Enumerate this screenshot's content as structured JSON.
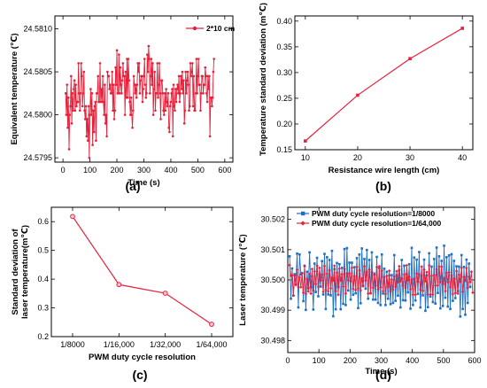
{
  "chart_data": [
    {
      "panel": "(a)",
      "type": "line",
      "xlabel": "Time (s)",
      "ylabel": "Equivalent temperature (℃)",
      "xlim": [
        -30,
        630
      ],
      "ylim": [
        24.57945,
        24.58115
      ],
      "xticks": [
        0,
        100,
        200,
        300,
        400,
        500,
        600
      ],
      "yticks": [
        24.5795,
        24.58,
        24.5805,
        24.581
      ],
      "ytick_labels": [
        "24.5795",
        "24.5800",
        "24.5805",
        "24.5810"
      ],
      "legend_position": "top-right",
      "color": "#e8203a",
      "series": [
        {
          "name": "2*10 cm",
          "x_start": 10,
          "x_step": 2.5,
          "y": [
            24.58025,
            24.58,
            24.58035,
            24.57985,
            24.5802,
            24.5796,
            24.58,
            24.5801,
            24.58045,
            24.5799,
            24.58025,
            24.58005,
            24.5803,
            24.5804,
            24.58005,
            24.58035,
            24.5801,
            24.58015,
            24.58015,
            24.5806,
            24.58025,
            24.58005,
            24.58025,
            24.5806,
            24.58045,
            24.5801,
            24.58025,
            24.5805,
            24.58005,
            24.57995,
            24.5801,
            24.57975,
            24.57995,
            24.5797,
            24.5801,
            24.5795,
            24.58,
            24.5803,
            24.58,
            24.58025,
            24.57965,
            24.58005,
            24.5798,
            24.5801,
            24.58015,
            24.5797,
            24.58025,
            24.58025,
            24.58045,
            24.58015,
            24.58015,
            24.5806,
            24.58015,
            24.5803,
            24.58015,
            24.58045,
            24.58015,
            24.58,
            24.58035,
            24.5799,
            24.58,
            24.57975,
            24.5805,
            24.58045,
            24.58045,
            24.5803,
            24.58035,
            24.58025,
            24.58025,
            24.5805,
            24.58005,
            24.58035,
            24.57995,
            24.58005,
            24.58055,
            24.58035,
            24.58075,
            24.58025,
            24.58025,
            24.5807,
            24.58025,
            24.58055,
            24.58035,
            24.58025,
            24.5804,
            24.5806,
            24.58045,
            24.58045,
            24.58,
            24.5805,
            24.5802,
            24.58065,
            24.5802,
            24.58065,
            24.5804,
            24.58015,
            24.58,
            24.5802,
            24.58,
            24.57985,
            24.58005,
            24.58045,
            24.58035,
            24.58025,
            24.58035,
            24.5802,
            24.58035,
            24.5806,
            24.5805,
            24.5806,
            24.58025,
            24.5804,
            24.58045,
            24.58045,
            24.58015,
            24.5803,
            24.58045,
            24.58065,
            24.58035,
            24.5802,
            24.58025,
            24.5807,
            24.5805,
            24.5808,
            24.58065,
            24.58025,
            24.58045,
            24.58065,
            24.58035,
            24.5806,
            24.58,
            24.5803,
            24.5805,
            24.58005,
            24.58025,
            24.58025,
            24.5806,
            24.5802,
            24.58035,
            24.5806,
            24.58025,
            24.57995,
            24.5804,
            24.5804,
            24.58025,
            24.58005,
            24.58,
            24.58025,
            24.58005,
            24.5803,
            24.58015,
            24.5801,
            24.58025,
            24.57985,
            24.5798,
            24.5801,
            24.58015,
            24.58025,
            24.5803,
            24.57975,
            24.58035,
            24.5801,
            24.58005,
            24.5803,
            24.58015,
            24.5803,
            24.58035,
            24.58025,
            24.58045,
            24.58015,
            24.58025,
            24.58045,
            24.5803,
            24.5805,
            24.58025,
            24.5804,
            24.5799,
            24.58005,
            24.5805,
            24.58025,
            24.5804,
            24.5805,
            24.58035,
            24.58005,
            24.5801,
            24.5806,
            24.58045,
            24.5805,
            24.5806,
            24.5801,
            24.58045,
            24.58005,
            24.58005,
            24.58025,
            24.58065,
            24.58025,
            24.58045,
            24.58065,
            24.58035,
            24.58035,
            24.58005,
            24.58025,
            24.58045,
            24.58045,
            24.58025,
            24.58035,
            24.58035,
            24.58055,
            24.58045,
            24.58025,
            24.58015,
            24.58045,
            24.5803,
            24.58045,
            24.57975,
            24.5802,
            24.5802,
            24.5801,
            24.5802,
            24.5805,
            24.58065
          ]
        }
      ]
    },
    {
      "panel": "(b)",
      "type": "line",
      "xlabel": "Resistance wire length (cm)",
      "ylabel": "Temperature standard deviation (m℃)",
      "xlim": [
        8,
        42
      ],
      "ylim": [
        0.15,
        0.41
      ],
      "xticks": [
        10,
        20,
        30,
        40
      ],
      "yticks": [
        0.15,
        0.2,
        0.25,
        0.3,
        0.35,
        0.4
      ],
      "ytick_labels": [
        "0.15",
        "0.20",
        "0.25",
        "0.30",
        "0.35",
        "0.40"
      ],
      "color": "#e8203a",
      "series": [
        {
          "x": [
            10,
            20,
            30,
            40
          ],
          "y": [
            0.167,
            0.256,
            0.327,
            0.386
          ]
        }
      ]
    },
    {
      "panel": "(c)",
      "type": "line",
      "xlabel": "PWM duty cycle resolution",
      "ylabel": "Standard deviation of laser temperature(m℃)",
      "ylabel_lines": [
        "Standard deviation of",
        "laser temperature(m℃)"
      ],
      "categories": [
        "1/8000",
        "1/16,000",
        "1/32,000",
        "1/64,000"
      ],
      "ylim": [
        0.2,
        0.65
      ],
      "yticks": [
        0.2,
        0.3,
        0.4,
        0.5,
        0.6
      ],
      "ytick_labels": [
        "0.2",
        "0.3",
        "0.4",
        "0.5",
        "0.6"
      ],
      "color": "#e8203a",
      "series": [
        {
          "values": [
            0.618,
            0.381,
            0.351,
            0.243
          ]
        }
      ]
    },
    {
      "panel": "(d)",
      "type": "line",
      "xlabel": "Time (s)",
      "ylabel": "Laser temperature (℃)",
      "xlim": [
        0,
        600
      ],
      "ylim": [
        30.4976,
        30.5024
      ],
      "xticks": [
        0,
        100,
        200,
        300,
        400,
        500,
        600
      ],
      "yticks": [
        30.498,
        30.499,
        30.5,
        30.501,
        30.502
      ],
      "ytick_labels": [
        "30.498",
        "30.499",
        "30.500",
        "30.501",
        "30.502"
      ],
      "legend_position": "top-left",
      "series": [
        {
          "name": "PWM duty cycle resolution=1/8000",
          "color": "#1f6fc4",
          "x_start": 6,
          "x_step": 4,
          "y": [
            30.50078,
            30.49938,
            30.50038,
            30.49948,
            30.50019,
            30.49986,
            30.50087,
            30.49909,
            30.50084,
            30.50018,
            30.50023,
            30.4993,
            30.50047,
            30.49901,
            30.50027,
            30.49972,
            30.50091,
            30.49976,
            30.50012,
            30.49902,
            30.50054,
            30.4996,
            30.50073,
            30.49946,
            30.50018,
            30.49978,
            30.50062,
            30.49952,
            30.50086,
            30.49904,
            30.50075,
            30.49952,
            30.50066,
            30.49949,
            30.50096,
            30.4988,
            30.50036,
            30.49903,
            30.50056,
            30.49977,
            30.50052,
            30.49903,
            30.5004,
            30.49921,
            30.50102,
            30.49917,
            30.50105,
            30.49965,
            30.50057,
            30.49935,
            30.50057,
            30.49951,
            30.50042,
            30.49956,
            30.50072,
            30.49907,
            30.50084,
            30.49923,
            30.50104,
            30.49981,
            30.50069,
            30.49971,
            30.50099,
            30.49938,
            30.50066,
            30.49956,
            30.50091,
            30.49935,
            30.50021,
            30.49935,
            30.50076,
            30.49924,
            30.50039,
            30.49917,
            30.50084,
            30.49955,
            30.50037,
            30.49917,
            30.50027,
            30.49938,
            30.50015,
            30.4992,
            30.50016,
            30.49924,
            30.50082,
            30.49931,
            30.50015,
            30.49948,
            30.50033,
            30.49909,
            30.50066,
            30.49933,
            30.50047,
            30.49932,
            30.5002,
            30.49959,
            30.50052,
            30.49905,
            30.50106,
            30.49917,
            30.50074,
            30.49932,
            30.50067,
            30.49954,
            30.50092,
            30.49909,
            30.50014,
            30.49949,
            30.50067,
            30.49898,
            30.50015,
            30.4991,
            30.50088,
            30.49945,
            30.50044,
            30.49927,
            30.50069,
            30.49922,
            30.50107,
            30.49957,
            30.50078,
            30.49906,
            30.50063,
            30.49914,
            30.50113,
            30.49941,
            30.50075,
            30.49912,
            30.50081,
            30.49904,
            30.50085,
            30.49931,
            30.50063,
            30.4994,
            30.50045,
            30.49963,
            30.50044,
            30.49879,
            30.50082,
            30.49904,
            30.50043,
            30.49885,
            30.50067,
            30.49924,
            30.50054,
            30.49977
          ]
        },
        {
          "name": "PWM duty cycle resolution=1/64,000",
          "color": "#e8203a",
          "x_start": 6,
          "x_step": 4,
          "y": [
            30.50049,
            30.50014,
            30.50016,
            30.49949,
            30.50013,
            30.49983,
            30.50034,
            30.49976,
            30.50009,
            30.49976,
            30.50021,
            30.49958,
            30.50045,
            30.49954,
            30.50003,
            30.49962,
            30.5002,
            30.49955,
            30.50036,
            30.49965,
            30.50028,
            30.49986,
            30.50047,
            30.49977,
            30.5004,
            30.49998,
            30.50018,
            30.49961,
            30.50046,
            30.49967,
            30.5002,
            30.49962,
            30.50032,
            30.49972,
            30.50007,
            30.49998,
            30.50047,
            30.49963,
            30.50024,
            30.49951,
            30.50037,
            30.49998,
            30.50019,
            30.49978,
            30.50036,
            30.49955,
            30.50021,
            30.49999,
            30.50022,
            30.49995,
            30.5004,
            30.4997,
            30.50012,
            30.49967,
            30.50043,
            30.49972,
            30.50032,
            30.49965,
            30.50005,
            30.49979,
            30.50045,
            30.49998,
            30.50027,
            30.49955,
            30.50034,
            30.49956,
            30.50026,
            30.49974,
            30.50016,
            30.49981,
            30.50042,
            30.49969,
            30.50045,
            30.49975,
            30.5003,
            30.49963,
            30.50009,
            30.49954,
            30.50013,
            30.49977,
            30.5003,
            30.49962,
            30.50001,
            30.49968,
            30.50011,
            30.49977,
            30.50029,
            30.49992,
            30.50045,
            30.49996,
            30.50005,
            30.49981,
            30.50018,
            30.49974,
            30.50048,
            30.49999,
            30.5001,
            30.49969,
            30.50001,
            30.49951,
            30.50004,
            30.49951,
            30.50021,
            30.49994,
            30.50019,
            30.49968,
            30.50044,
            30.49964,
            30.50034,
            30.49996,
            30.50026,
            30.49952,
            30.50048,
            30.49952,
            30.50013,
            30.49952,
            30.50016,
            30.49981,
            30.50035,
            30.49982,
            30.50044,
            30.49993,
            30.50044,
            30.49986,
            30.50006,
            30.49963,
            30.50023,
            30.49993,
            30.50025,
            30.49976,
            30.50015,
            30.49953,
            30.50004,
            30.49957,
            30.50029,
            30.49955,
            30.50017,
            30.49994,
            30.5004,
            30.49961,
            30.5001,
            30.49997,
            30.50039,
            30.49974,
            30.50011,
            30.49993,
            30.50027,
            30.49958
          ]
        }
      ]
    }
  ]
}
